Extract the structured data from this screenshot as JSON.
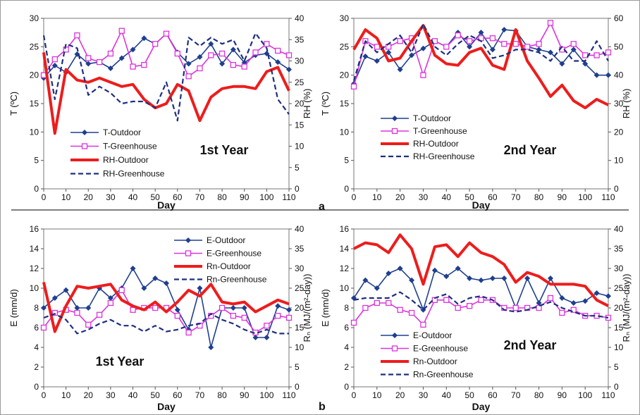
{
  "panel_labels": {
    "a": "a",
    "b": "b"
  },
  "chart_data": [
    {
      "type": "line",
      "title": "1st Year",
      "xlabel": "Day",
      "ylabel": "T (ºC)",
      "ylabel_right": "RH (%)",
      "xlim": [
        0,
        110
      ],
      "ylim": [
        0,
        30
      ],
      "ylim_right": [
        0,
        40
      ],
      "xticks": [
        0,
        10,
        20,
        30,
        40,
        50,
        60,
        70,
        80,
        90,
        100,
        110
      ],
      "yticks": [
        0,
        5,
        10,
        15,
        20,
        25,
        30
      ],
      "yticks_right": [
        0,
        5,
        10,
        15,
        20,
        25,
        30,
        35,
        40
      ],
      "grid": false,
      "legend_position": "left",
      "x": [
        0,
        5,
        10,
        15,
        20,
        25,
        30,
        35,
        40,
        45,
        50,
        55,
        60,
        65,
        70,
        75,
        80,
        85,
        90,
        95,
        100,
        105,
        110
      ],
      "series": [
        {
          "name": "T-Outdoor",
          "axis": "left",
          "color": "#1f3f8f",
          "style": "diamond",
          "values": [
            19.5,
            21.7,
            20.5,
            23.7,
            22.0,
            22.3,
            21.2,
            23.0,
            24.5,
            26.5,
            25.5,
            27.3,
            24.0,
            22.0,
            23.2,
            25.5,
            22.0,
            24.5,
            22.2,
            23.5,
            23.8,
            22.3,
            21.0
          ]
        },
        {
          "name": "T-Greenhouse",
          "axis": "left",
          "color": "#dd33dd",
          "style": "square",
          "values": [
            20.0,
            22.8,
            24.5,
            27.0,
            23.0,
            22.3,
            23.8,
            27.8,
            21.5,
            21.8,
            25.5,
            27.3,
            23.8,
            19.8,
            21.2,
            23.5,
            23.8,
            21.8,
            21.5,
            24.0,
            25.5,
            24.3,
            23.5
          ]
        },
        {
          "name": "RH-Outdoor",
          "axis": "right",
          "color": "#ee1c1c",
          "style": "thick",
          "values": [
            32.0,
            13.0,
            28.0,
            25.5,
            25.0,
            26.0,
            25.0,
            24.0,
            24.5,
            21.0,
            19.0,
            20.0,
            24.5,
            23.0,
            16.0,
            21.5,
            23.5,
            24.0,
            24.0,
            23.5,
            27.5,
            28.5,
            23.0
          ]
        },
        {
          "name": "RH-Greenhouse",
          "axis": "right",
          "color": "#1f2f7f",
          "style": "dashed",
          "values": [
            36.0,
            21.0,
            34.0,
            33.0,
            22.0,
            24.0,
            22.5,
            20.0,
            20.5,
            20.5,
            19.0,
            25.0,
            16.0,
            35.5,
            33.5,
            35.5,
            34.0,
            35.0,
            30.0,
            36.5,
            33.0,
            21.0,
            17.5
          ]
        }
      ]
    },
    {
      "type": "line",
      "title": "2nd Year",
      "xlabel": "Day",
      "ylabel": "T (ºC)",
      "ylabel_right": "RH (%)",
      "xlim": [
        0,
        110
      ],
      "ylim": [
        0,
        30
      ],
      "ylim_right": [
        0,
        60
      ],
      "xticks": [
        0,
        10,
        20,
        30,
        40,
        50,
        60,
        70,
        80,
        90,
        100,
        110
      ],
      "yticks": [
        0,
        5,
        10,
        15,
        20,
        25,
        30
      ],
      "yticks_right": [
        0,
        10,
        20,
        30,
        40,
        50,
        60
      ],
      "grid": false,
      "legend_position": "left",
      "x": [
        0,
        5,
        10,
        15,
        20,
        25,
        30,
        35,
        40,
        45,
        50,
        55,
        60,
        65,
        70,
        75,
        80,
        85,
        90,
        95,
        100,
        105,
        110
      ],
      "series": [
        {
          "name": "T-Outdoor",
          "axis": "left",
          "color": "#1f3f8f",
          "style": "diamond",
          "values": [
            18.5,
            23.3,
            22.5,
            24.0,
            21.0,
            23.5,
            24.7,
            26.0,
            25.0,
            27.5,
            25.0,
            27.5,
            24.5,
            28.0,
            27.8,
            25.0,
            24.5,
            24.0,
            22.0,
            24.5,
            22.0,
            20.0,
            20.0
          ]
        },
        {
          "name": "T-Greenhouse",
          "axis": "left",
          "color": "#dd33dd",
          "style": "square",
          "values": [
            18.0,
            26.0,
            25.0,
            25.0,
            26.0,
            26.5,
            20.0,
            26.0,
            25.0,
            27.0,
            26.0,
            26.5,
            26.5,
            25.5,
            25.5,
            25.0,
            25.5,
            29.2,
            24.5,
            25.5,
            23.5,
            23.5,
            24.0
          ]
        },
        {
          "name": "RH-Outdoor",
          "axis": "right",
          "color": "#ee1c1c",
          "style": "thick",
          "values": [
            49.0,
            56.0,
            53.0,
            45.0,
            46.0,
            52.0,
            57.5,
            47.0,
            44.0,
            43.5,
            48.0,
            49.5,
            43.5,
            42.0,
            56.0,
            45.0,
            39.0,
            32.5,
            36.5,
            31.0,
            28.5,
            31.5,
            29.5
          ]
        },
        {
          "name": "RH-Greenhouse",
          "axis": "right",
          "color": "#1f2f7f",
          "style": "dashed",
          "values": [
            38.0,
            52.0,
            48.0,
            51.0,
            54.0,
            48.0,
            58.0,
            50.0,
            47.0,
            51.0,
            54.0,
            52.0,
            46.0,
            47.0,
            49.0,
            49.0,
            48.0,
            45.0,
            50.0,
            45.0,
            45.0,
            52.0,
            45.0
          ]
        }
      ]
    },
    {
      "type": "line",
      "title": "1st Year",
      "xlabel": "Day",
      "ylabel": "E (mm/d)",
      "ylabel_right": "Rₙ (MJ/(m²-day))",
      "xlim": [
        0,
        110
      ],
      "ylim": [
        0,
        16
      ],
      "ylim_right": [
        0,
        40
      ],
      "xticks": [
        0,
        10,
        20,
        30,
        40,
        50,
        60,
        70,
        80,
        90,
        100,
        110
      ],
      "yticks": [
        0,
        2,
        4,
        6,
        8,
        10,
        12,
        14,
        16
      ],
      "yticks_right": [
        0,
        5,
        10,
        15,
        20,
        25,
        30,
        35,
        40
      ],
      "grid": false,
      "legend_position": "top-right",
      "x": [
        0,
        5,
        10,
        15,
        20,
        25,
        30,
        35,
        40,
        45,
        50,
        55,
        60,
        65,
        70,
        75,
        80,
        85,
        90,
        95,
        100,
        105,
        110
      ],
      "series": [
        {
          "name": "E-Outdoor",
          "axis": "left",
          "color": "#1f3f8f",
          "style": "diamond",
          "values": [
            8.0,
            9.0,
            9.8,
            8.0,
            8.0,
            10.0,
            9.0,
            10.0,
            12.0,
            10.0,
            11.0,
            10.5,
            7.8,
            5.8,
            10.0,
            4.0,
            8.0,
            8.0,
            8.0,
            5.0,
            5.0,
            8.2,
            7.8
          ]
        },
        {
          "name": "E-Greenhouse",
          "axis": "left",
          "color": "#dd33dd",
          "style": "square",
          "values": [
            6.0,
            7.5,
            7.8,
            7.5,
            6.3,
            7.3,
            8.5,
            9.8,
            7.8,
            8.0,
            8.0,
            8.0,
            7.2,
            5.5,
            6.2,
            7.2,
            8.0,
            7.2,
            7.0,
            5.5,
            6.2,
            7.2,
            7.0
          ]
        },
        {
          "name": "Rn-Outdoor",
          "axis": "right",
          "color": "#ee1c1c",
          "style": "thick",
          "values": [
            26.5,
            14.0,
            20.5,
            25.5,
            25.0,
            25.5,
            26.0,
            22.0,
            20.5,
            19.5,
            21.5,
            19.0,
            21.5,
            24.5,
            23.0,
            26.0,
            21.5,
            21.0,
            21.5,
            19.0,
            20.5,
            22.0,
            21.0
          ]
        },
        {
          "name": "Rn-Greenhouse",
          "axis": "right",
          "color": "#1f2f7f",
          "style": "dashed",
          "values": [
            17.5,
            18.5,
            17.0,
            13.5,
            14.5,
            16.0,
            17.0,
            15.5,
            15.5,
            14.0,
            15.5,
            14.0,
            14.5,
            15.5,
            16.0,
            18.5,
            17.0,
            16.0,
            14.5,
            13.5,
            14.5,
            13.5,
            13.5
          ]
        }
      ]
    },
    {
      "type": "line",
      "title": "2nd Year",
      "xlabel": "Day",
      "ylabel": "E (mm/d)",
      "ylabel_right": "Rₙ (MJ/(m²-day))",
      "xlim": [
        0,
        110
      ],
      "ylim": [
        0,
        16
      ],
      "ylim_right": [
        0,
        40
      ],
      "xticks": [
        0,
        10,
        20,
        30,
        40,
        50,
        60,
        70,
        80,
        90,
        100,
        110
      ],
      "yticks": [
        0,
        2,
        4,
        6,
        8,
        10,
        12,
        14,
        16
      ],
      "yticks_right": [
        0,
        5,
        10,
        15,
        20,
        25,
        30,
        35,
        40
      ],
      "grid": false,
      "legend_position": "bottom-left",
      "x": [
        0,
        5,
        10,
        15,
        20,
        25,
        30,
        35,
        40,
        45,
        50,
        55,
        60,
        65,
        70,
        75,
        80,
        85,
        90,
        95,
        100,
        105,
        110
      ],
      "series": [
        {
          "name": "E-Outdoor",
          "axis": "left",
          "color": "#1f3f8f",
          "style": "diamond",
          "values": [
            9.0,
            10.8,
            10.0,
            11.5,
            12.0,
            10.8,
            7.8,
            11.8,
            11.2,
            12.0,
            11.0,
            10.8,
            11.0,
            11.0,
            8.0,
            11.0,
            8.5,
            11.0,
            9.0,
            8.5,
            8.7,
            9.5,
            9.2
          ]
        },
        {
          "name": "E-Greenhouse",
          "axis": "left",
          "color": "#dd33dd",
          "style": "square",
          "values": [
            6.5,
            8.0,
            8.5,
            8.5,
            7.8,
            7.5,
            6.3,
            8.8,
            8.8,
            8.0,
            8.2,
            8.8,
            8.8,
            8.0,
            8.0,
            8.0,
            8.0,
            9.0,
            7.5,
            7.8,
            7.2,
            7.2,
            7.0
          ]
        },
        {
          "name": "Rn-Outdoor",
          "axis": "right",
          "color": "#ee1c1c",
          "style": "thick",
          "values": [
            35.0,
            36.5,
            36.0,
            34.0,
            38.5,
            35.0,
            26.0,
            35.5,
            36.0,
            33.0,
            36.5,
            34.0,
            33.0,
            31.0,
            26.5,
            29.0,
            28.0,
            26.0,
            26.0,
            26.0,
            25.5,
            22.0,
            20.5
          ]
        },
        {
          "name": "Rn-Greenhouse",
          "axis": "right",
          "color": "#1f2f7f",
          "style": "dashed",
          "values": [
            22.0,
            22.5,
            22.5,
            22.5,
            24.0,
            22.0,
            19.5,
            22.5,
            23.5,
            21.0,
            22.5,
            23.0,
            22.0,
            19.5,
            19.0,
            19.5,
            20.5,
            21.5,
            20.0,
            19.0,
            18.0,
            18.0,
            17.5
          ]
        }
      ]
    }
  ]
}
